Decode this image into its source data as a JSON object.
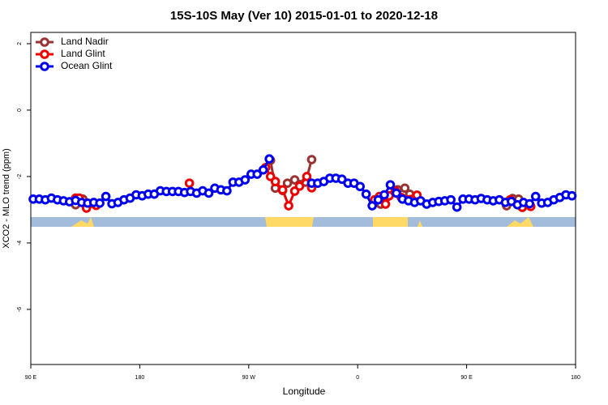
{
  "chart_data": {
    "type": "line",
    "title": "15S-10S May (Ver 10)   2015-01-01 to 2020-12-18",
    "xlabel": "Longitude",
    "ylabel": "XCO2 - MLO trend (ppm)",
    "xlim": [
      90,
      540
    ],
    "xticks": [
      {
        "value": 90,
        "label": "90 E"
      },
      180,
      {
        "value": 270,
        "label": "90 W"
      },
      {
        "value": 360,
        "label": "0"
      },
      {
        "value": 450,
        "label": "90 E"
      },
      {
        "value": 540,
        "label": "180"
      }
    ],
    "ylim": [
      -7.66,
      2.34
    ],
    "yticks": [
      2,
      0,
      -2,
      -4,
      -6
    ],
    "legend": "top-left",
    "series": [
      {
        "name": "Land Nadir",
        "color": "#993333",
        "x": [
          127,
          133,
          136,
          200,
          288,
          292,
          298,
          302,
          308,
          312,
          317,
          322,
          350,
          376,
          379,
          385,
          393,
          399,
          403,
          440,
          483,
          488,
          493
        ],
        "values": [
          -2.85,
          -2.68,
          -2.85,
          null,
          -1.51,
          -2.35,
          -2.42,
          -2.2,
          -2.1,
          -2.24,
          -2.17,
          -1.49,
          null,
          -2.78,
          -2.83,
          -2.6,
          -2.4,
          -2.35,
          -2.53,
          null,
          -2.88,
          -2.66,
          -2.68
        ]
      },
      {
        "name": "Land Glint",
        "color": "#ee0000",
        "x": [
          127,
          130,
          136,
          144,
          180,
          221,
          250,
          284,
          288,
          292,
          298,
          303,
          308,
          312,
          318,
          322,
          350,
          374,
          378,
          383,
          386,
          391,
          396,
          409,
          440,
          486,
          496,
          503
        ],
        "values": [
          -2.65,
          -2.65,
          -2.95,
          -2.87,
          null,
          -2.2,
          null,
          -1.73,
          -2.0,
          -2.15,
          -2.4,
          -2.88,
          -2.44,
          -2.29,
          -2.0,
          -2.34,
          null,
          -2.7,
          -2.6,
          -2.83,
          -2.58,
          -2.44,
          -2.63,
          -2.56,
          null,
          -2.7,
          -2.93,
          -2.9
        ]
      },
      {
        "name": "Ocean Glint",
        "color": "#0000ee",
        "x": [
          92,
          97,
          102,
          107,
          112,
          117,
          122,
          127,
          132,
          137,
          142,
          147,
          152,
          157,
          162,
          167,
          172,
          177,
          182,
          187,
          192,
          197,
          202,
          207,
          212,
          217,
          222,
          227,
          232,
          237,
          242,
          247,
          252,
          257,
          262,
          267,
          272,
          277,
          282,
          287,
          305,
          322,
          327,
          332,
          337,
          342,
          347,
          352,
          357,
          362,
          367,
          372,
          377,
          382,
          387,
          392,
          397,
          402,
          407,
          412,
          417,
          422,
          427,
          432,
          437,
          442,
          447,
          452,
          457,
          462,
          467,
          472,
          477,
          482,
          487,
          492,
          497,
          502,
          507,
          512,
          517,
          522,
          527,
          532,
          537
        ],
        "values": [
          -2.68,
          -2.68,
          -2.7,
          -2.65,
          -2.7,
          -2.73,
          -2.76,
          -2.72,
          -2.78,
          -2.8,
          -2.78,
          -2.8,
          -2.6,
          -2.82,
          -2.78,
          -2.7,
          -2.65,
          -2.55,
          -2.58,
          -2.53,
          -2.53,
          -2.43,
          -2.45,
          -2.45,
          -2.45,
          -2.48,
          -2.45,
          -2.5,
          -2.43,
          -2.5,
          -2.35,
          -2.4,
          -2.43,
          -2.17,
          -2.17,
          -2.1,
          -1.93,
          -1.93,
          -1.8,
          -1.47,
          null,
          -2.2,
          -2.2,
          -2.15,
          -2.05,
          -2.05,
          -2.08,
          -2.2,
          -2.2,
          -2.3,
          -2.53,
          -2.88,
          -2.7,
          -2.55,
          -2.25,
          -2.5,
          -2.68,
          -2.73,
          -2.78,
          -2.73,
          -2.83,
          -2.78,
          -2.75,
          -2.73,
          -2.7,
          -2.92,
          -2.68,
          -2.68,
          -2.7,
          -2.66,
          -2.7,
          -2.73,
          -2.7,
          -2.78,
          -2.75,
          -2.85,
          -2.78,
          -2.82,
          -2.6,
          -2.8,
          -2.78,
          -2.7,
          -2.63,
          -2.55,
          -2.58
        ]
      }
    ]
  }
}
